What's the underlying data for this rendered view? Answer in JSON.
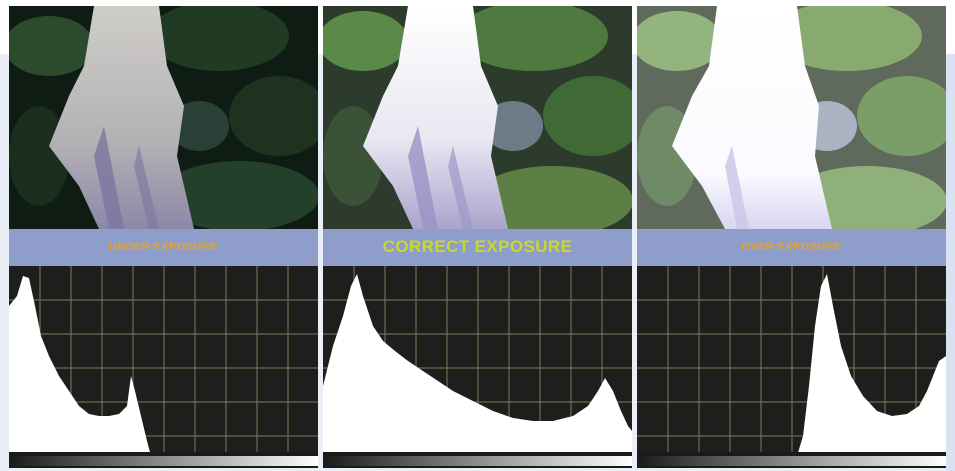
{
  "panels": [
    {
      "id": "under",
      "label": "UNDER EXPOSURE",
      "label_color": "#e8a21f",
      "emphasis": false
    },
    {
      "id": "correct",
      "label": "CORRECT EXPOSURE",
      "label_color": "#c9d92c",
      "emphasis": true
    },
    {
      "id": "over",
      "label": "OVER EXPOSURE",
      "label_color": "#e8a21f",
      "emphasis": false
    }
  ],
  "colors": {
    "panel_frame": "#8e9dc9",
    "histogram_background": "#1e1e1c",
    "histogram_fill": "#ffffff",
    "grid_lines": "#8a8460"
  }
}
